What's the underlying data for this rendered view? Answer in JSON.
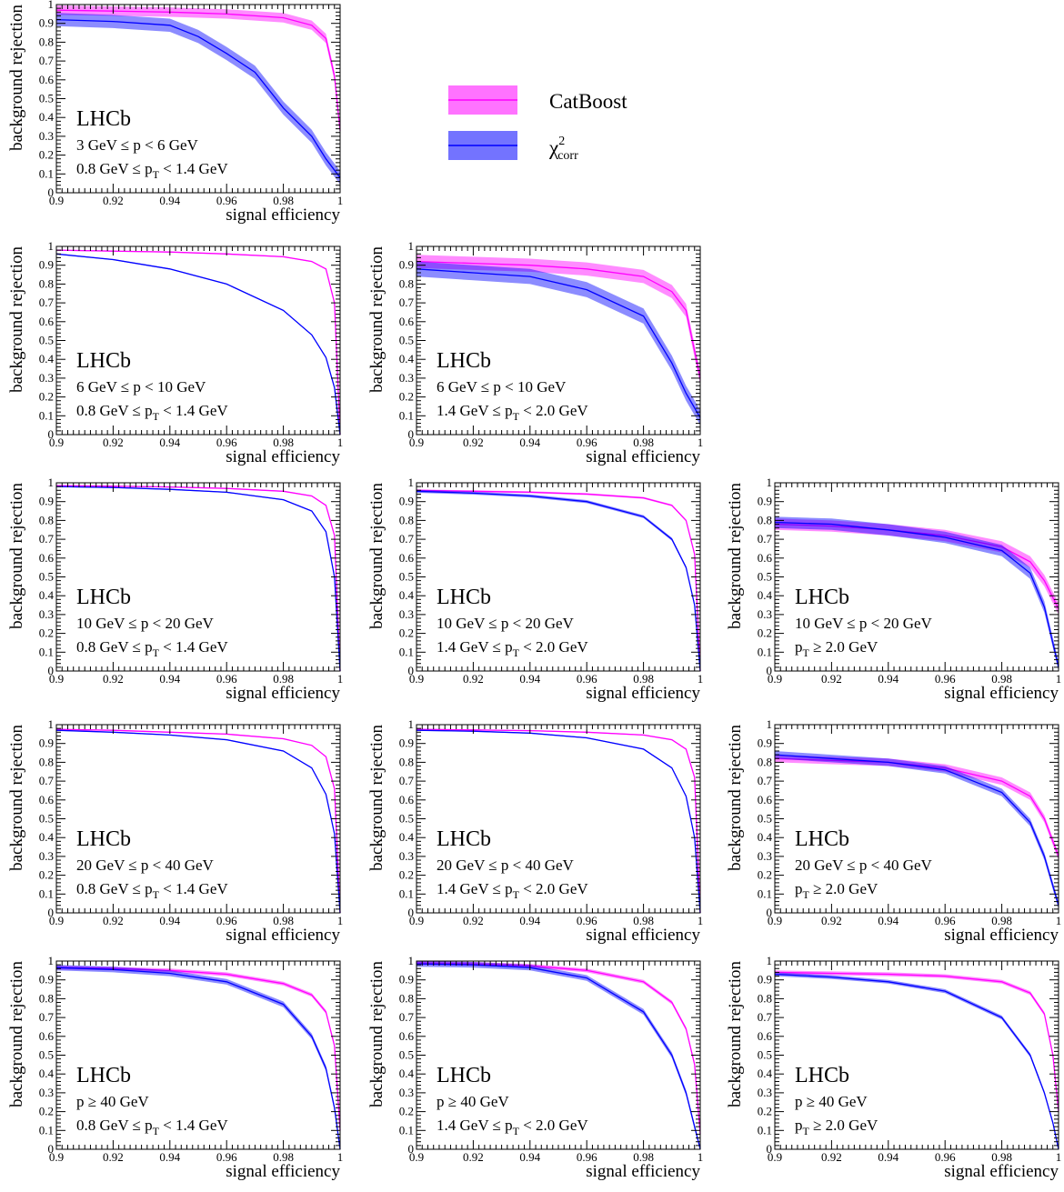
{
  "legend": {
    "items": [
      {
        "label": "CatBoost",
        "color": "#ff00ff"
      },
      {
        "label": "χ",
        "sup": "2",
        "sub": "corr",
        "color": "#0000ff"
      }
    ]
  },
  "chart_data": [
    {
      "type": "line",
      "experiment_label": "LHCb",
      "bin_p": "3 GeV ≤ p < 6 GeV",
      "bin_pt": {
        "pre": "0.8 GeV ≤ p",
        "sub": "T",
        "post": " < 1.4 GeV"
      },
      "xlabel": "signal efficiency",
      "ylabel": "background rejection",
      "xlim": [
        0.9,
        1.0
      ],
      "ylim": [
        0,
        1
      ],
      "xticks": [
        "0.9",
        "0.92",
        "0.94",
        "0.96",
        "0.98",
        "1"
      ],
      "yticks": [
        "0",
        "0.1",
        "0.2",
        "0.3",
        "0.4",
        "0.5",
        "0.6",
        "0.7",
        "0.8",
        "0.9",
        "1"
      ],
      "x": [
        0.9,
        0.92,
        0.94,
        0.95,
        0.96,
        0.97,
        0.98,
        0.99,
        0.995,
        0.998,
        1.0
      ],
      "series": [
        {
          "name": "CatBoost",
          "color": "#ff00ff",
          "values": [
            0.97,
            0.965,
            0.96,
            0.955,
            0.95,
            0.94,
            0.93,
            0.89,
            0.82,
            0.62,
            0.33
          ],
          "band": 0.025
        },
        {
          "name": "χ2corr",
          "color": "#0000ff",
          "values": [
            0.92,
            0.91,
            0.89,
            0.83,
            0.74,
            0.64,
            0.45,
            0.3,
            0.18,
            0.12,
            0.08
          ],
          "band": 0.035
        }
      ]
    },
    {
      "type": "line",
      "experiment_label": "LHCb",
      "bin_p": "6 GeV ≤ p < 10 GeV",
      "bin_pt": {
        "pre": "0.8 GeV ≤ p",
        "sub": "T",
        "post": " < 1.4 GeV"
      },
      "xlabel": "signal efficiency",
      "ylabel": "background rejection",
      "xlim": [
        0.9,
        1.0
      ],
      "ylim": [
        0,
        1
      ],
      "xticks": [
        "0.9",
        "0.92",
        "0.94",
        "0.96",
        "0.98",
        "1"
      ],
      "yticks": [
        "0",
        "0.1",
        "0.2",
        "0.3",
        "0.4",
        "0.5",
        "0.6",
        "0.7",
        "0.8",
        "0.9",
        "1"
      ],
      "x": [
        0.9,
        0.92,
        0.94,
        0.96,
        0.98,
        0.99,
        0.995,
        0.998,
        1.0
      ],
      "series": [
        {
          "name": "CatBoost",
          "color": "#ff00ff",
          "values": [
            0.98,
            0.975,
            0.97,
            0.96,
            0.945,
            0.92,
            0.88,
            0.7,
            0.0
          ],
          "band": 0.003
        },
        {
          "name": "χ2corr",
          "color": "#0000ff",
          "values": [
            0.96,
            0.93,
            0.88,
            0.8,
            0.66,
            0.53,
            0.41,
            0.25,
            0.0
          ],
          "band": 0.003
        }
      ]
    },
    {
      "type": "line",
      "experiment_label": "LHCb",
      "bin_p": "6 GeV ≤ p < 10 GeV",
      "bin_pt": {
        "pre": "1.4 GeV ≤ p",
        "sub": "T",
        "post": " < 2.0 GeV"
      },
      "xlabel": "signal efficiency",
      "ylabel": "background rejection",
      "xlim": [
        0.9,
        1.0
      ],
      "ylim": [
        0,
        1
      ],
      "xticks": [
        "0.9",
        "0.92",
        "0.94",
        "0.96",
        "0.98",
        "1"
      ],
      "yticks": [
        "0",
        "0.1",
        "0.2",
        "0.3",
        "0.4",
        "0.5",
        "0.6",
        "0.7",
        "0.8",
        "0.9",
        "1"
      ],
      "x": [
        0.9,
        0.92,
        0.94,
        0.96,
        0.98,
        0.99,
        0.995,
        1.0
      ],
      "series": [
        {
          "name": "CatBoost",
          "color": "#ff00ff",
          "values": [
            0.92,
            0.91,
            0.9,
            0.88,
            0.84,
            0.76,
            0.66,
            0.3
          ],
          "band": 0.035
        },
        {
          "name": "χ2corr",
          "color": "#0000ff",
          "values": [
            0.88,
            0.86,
            0.84,
            0.77,
            0.63,
            0.38,
            0.22,
            0.09
          ],
          "band": 0.04
        }
      ]
    },
    {
      "type": "line",
      "experiment_label": "LHCb",
      "bin_p": "10 GeV ≤ p < 20 GeV",
      "bin_pt": {
        "pre": "0.8 GeV ≤ p",
        "sub": "T",
        "post": " < 1.4 GeV"
      },
      "xlabel": "signal efficiency",
      "ylabel": "background rejection",
      "xlim": [
        0.9,
        1.0
      ],
      "ylim": [
        0,
        1
      ],
      "xticks": [
        "0.9",
        "0.92",
        "0.94",
        "0.96",
        "0.98",
        "1"
      ],
      "yticks": [
        "0",
        "0.1",
        "0.2",
        "0.3",
        "0.4",
        "0.5",
        "0.6",
        "0.7",
        "0.8",
        "0.9",
        "1"
      ],
      "x": [
        0.9,
        0.92,
        0.94,
        0.96,
        0.98,
        0.99,
        0.995,
        0.998,
        1.0
      ],
      "series": [
        {
          "name": "CatBoost",
          "color": "#ff00ff",
          "values": [
            0.985,
            0.982,
            0.978,
            0.97,
            0.955,
            0.93,
            0.88,
            0.72,
            0.0
          ],
          "band": 0.003
        },
        {
          "name": "χ2corr",
          "color": "#0000ff",
          "values": [
            0.98,
            0.975,
            0.965,
            0.95,
            0.91,
            0.85,
            0.74,
            0.5,
            0.0
          ],
          "band": 0.003
        }
      ]
    },
    {
      "type": "line",
      "experiment_label": "LHCb",
      "bin_p": "10 GeV ≤ p < 20 GeV",
      "bin_pt": {
        "pre": "1.4 GeV ≤ p",
        "sub": "T",
        "post": " < 2.0 GeV"
      },
      "xlabel": "signal efficiency",
      "ylabel": "background rejection",
      "xlim": [
        0.9,
        1.0
      ],
      "ylim": [
        0,
        1
      ],
      "xticks": [
        "0.9",
        "0.92",
        "0.94",
        "0.96",
        "0.98",
        "1"
      ],
      "yticks": [
        "0",
        "0.1",
        "0.2",
        "0.3",
        "0.4",
        "0.5",
        "0.6",
        "0.7",
        "0.8",
        "0.9",
        "1"
      ],
      "x": [
        0.9,
        0.92,
        0.94,
        0.96,
        0.98,
        0.99,
        0.995,
        0.998,
        1.0
      ],
      "series": [
        {
          "name": "CatBoost",
          "color": "#ff00ff",
          "values": [
            0.96,
            0.955,
            0.95,
            0.94,
            0.92,
            0.88,
            0.8,
            0.62,
            0.0
          ],
          "band": 0.005
        },
        {
          "name": "χ2corr",
          "color": "#0000ff",
          "values": [
            0.955,
            0.945,
            0.93,
            0.9,
            0.82,
            0.7,
            0.55,
            0.35,
            0.0
          ],
          "band": 0.008
        }
      ]
    },
    {
      "type": "line",
      "experiment_label": "LHCb",
      "bin_p": "10 GeV ≤ p < 20 GeV",
      "bin_pt": {
        "pre": "p",
        "sub": "T",
        "post": " ≥ 2.0 GeV"
      },
      "xlabel": "signal efficiency",
      "ylabel": "background rejection",
      "xlim": [
        0.9,
        1.0
      ],
      "ylim": [
        0,
        1
      ],
      "xticks": [
        "0.9",
        "0.92",
        "0.94",
        "0.96",
        "0.98",
        "1"
      ],
      "yticks": [
        "0",
        "0.1",
        "0.2",
        "0.3",
        "0.4",
        "0.5",
        "0.6",
        "0.7",
        "0.8",
        "0.9",
        "1"
      ],
      "x": [
        0.9,
        0.92,
        0.94,
        0.96,
        0.98,
        0.99,
        0.995,
        1.0
      ],
      "series": [
        {
          "name": "CatBoost",
          "color": "#ff00ff",
          "values": [
            0.78,
            0.77,
            0.75,
            0.72,
            0.66,
            0.58,
            0.48,
            0.33
          ],
          "band": 0.03
        },
        {
          "name": "χ2corr",
          "color": "#0000ff",
          "values": [
            0.79,
            0.78,
            0.75,
            0.71,
            0.64,
            0.52,
            0.34,
            0.02
          ],
          "band": 0.03
        }
      ]
    },
    {
      "type": "line",
      "experiment_label": "LHCb",
      "bin_p": "20 GeV ≤ p < 40 GeV",
      "bin_pt": {
        "pre": "0.8 GeV ≤ p",
        "sub": "T",
        "post": " < 1.4 GeV"
      },
      "xlabel": "signal efficiency",
      "ylabel": "background rejection",
      "xlim": [
        0.9,
        1.0
      ],
      "ylim": [
        0,
        1
      ],
      "xticks": [
        "0.9",
        "0.92",
        "0.94",
        "0.96",
        "0.98",
        "1"
      ],
      "yticks": [
        "0",
        "0.1",
        "0.2",
        "0.3",
        "0.4",
        "0.5",
        "0.6",
        "0.7",
        "0.8",
        "0.9",
        "1"
      ],
      "x": [
        0.9,
        0.92,
        0.94,
        0.96,
        0.98,
        0.99,
        0.995,
        0.998,
        1.0
      ],
      "series": [
        {
          "name": "CatBoost",
          "color": "#ff00ff",
          "values": [
            0.975,
            0.97,
            0.96,
            0.95,
            0.925,
            0.89,
            0.83,
            0.66,
            0.0
          ],
          "band": 0.003
        },
        {
          "name": "χ2corr",
          "color": "#0000ff",
          "values": [
            0.97,
            0.96,
            0.945,
            0.92,
            0.86,
            0.77,
            0.63,
            0.42,
            0.0
          ],
          "band": 0.003
        }
      ]
    },
    {
      "type": "line",
      "experiment_label": "LHCb",
      "bin_p": "20 GeV ≤ p < 40 GeV",
      "bin_pt": {
        "pre": "1.4 GeV ≤ p",
        "sub": "T",
        "post": " < 2.0 GeV"
      },
      "xlabel": "signal efficiency",
      "ylabel": "background rejection",
      "xlim": [
        0.9,
        1.0
      ],
      "ylim": [
        0,
        1
      ],
      "xticks": [
        "0.9",
        "0.92",
        "0.94",
        "0.96",
        "0.98",
        "1"
      ],
      "yticks": [
        "0",
        "0.1",
        "0.2",
        "0.3",
        "0.4",
        "0.5",
        "0.6",
        "0.7",
        "0.8",
        "0.9",
        "1"
      ],
      "x": [
        0.9,
        0.92,
        0.94,
        0.96,
        0.98,
        0.99,
        0.995,
        0.998,
        1.0
      ],
      "series": [
        {
          "name": "CatBoost",
          "color": "#ff00ff",
          "values": [
            0.975,
            0.972,
            0.968,
            0.96,
            0.945,
            0.92,
            0.87,
            0.72,
            0.0
          ],
          "band": 0.003
        },
        {
          "name": "χ2corr",
          "color": "#0000ff",
          "values": [
            0.97,
            0.965,
            0.955,
            0.93,
            0.87,
            0.77,
            0.62,
            0.4,
            0.0
          ],
          "band": 0.003
        }
      ]
    },
    {
      "type": "line",
      "experiment_label": "LHCb",
      "bin_p": "20 GeV ≤ p < 40 GeV",
      "bin_pt": {
        "pre": "p",
        "sub": "T",
        "post": " ≥ 2.0 GeV"
      },
      "xlabel": "signal efficiency",
      "ylabel": "background rejection",
      "xlim": [
        0.9,
        1.0
      ],
      "ylim": [
        0,
        1
      ],
      "xticks": [
        "0.9",
        "0.92",
        "0.94",
        "0.96",
        "0.98",
        "1"
      ],
      "yticks": [
        "0",
        "0.1",
        "0.2",
        "0.3",
        "0.4",
        "0.5",
        "0.6",
        "0.7",
        "0.8",
        "0.9",
        "1"
      ],
      "x": [
        0.9,
        0.92,
        0.94,
        0.96,
        0.98,
        0.99,
        0.995,
        1.0
      ],
      "series": [
        {
          "name": "CatBoost",
          "color": "#ff00ff",
          "values": [
            0.82,
            0.81,
            0.8,
            0.77,
            0.7,
            0.62,
            0.5,
            0.3
          ],
          "band": 0.02
        },
        {
          "name": "χ2corr",
          "color": "#0000ff",
          "values": [
            0.84,
            0.82,
            0.8,
            0.76,
            0.64,
            0.48,
            0.3,
            0.04
          ],
          "band": 0.02
        }
      ]
    },
    {
      "type": "line",
      "experiment_label": "LHCb",
      "bin_p": "p ≥ 40 GeV",
      "bin_pt": {
        "pre": "0.8 GeV ≤ p",
        "sub": "T",
        "post": " < 1.4 GeV"
      },
      "xlabel": "signal efficiency",
      "ylabel": "background rejection",
      "xlim": [
        0.9,
        1.0
      ],
      "ylim": [
        0,
        1
      ],
      "xticks": [
        "0.9",
        "0.92",
        "0.94",
        "0.96",
        "0.98",
        "1"
      ],
      "yticks": [
        "0",
        "0.1",
        "0.2",
        "0.3",
        "0.4",
        "0.5",
        "0.6",
        "0.7",
        "0.8",
        "0.9",
        "1"
      ],
      "x": [
        0.9,
        0.92,
        0.94,
        0.96,
        0.98,
        0.99,
        0.995,
        0.998,
        1.0
      ],
      "series": [
        {
          "name": "CatBoost",
          "color": "#ff00ff",
          "values": [
            0.965,
            0.96,
            0.95,
            0.93,
            0.88,
            0.82,
            0.73,
            0.55,
            0.1
          ],
          "band": 0.01
        },
        {
          "name": "χ2corr",
          "color": "#0000ff",
          "values": [
            0.965,
            0.955,
            0.935,
            0.89,
            0.77,
            0.6,
            0.43,
            0.22,
            0.0
          ],
          "band": 0.015
        }
      ]
    },
    {
      "type": "line",
      "experiment_label": "LHCb",
      "bin_p": "p ≥ 40 GeV",
      "bin_pt": {
        "pre": "1.4 GeV ≤ p",
        "sub": "T",
        "post": " < 2.0 GeV"
      },
      "xlabel": "signal efficiency",
      "ylabel": "background rejection",
      "xlim": [
        0.9,
        1.0
      ],
      "ylim": [
        0,
        1
      ],
      "xticks": [
        "0.9",
        "0.92",
        "0.94",
        "0.96",
        "0.98",
        "1"
      ],
      "yticks": [
        "0",
        "0.1",
        "0.2",
        "0.3",
        "0.4",
        "0.5",
        "0.6",
        "0.7",
        "0.8",
        "0.9",
        "1"
      ],
      "x": [
        0.9,
        0.92,
        0.94,
        0.96,
        0.98,
        0.99,
        0.995,
        0.998,
        1.0
      ],
      "series": [
        {
          "name": "CatBoost",
          "color": "#ff00ff",
          "values": [
            0.99,
            0.985,
            0.975,
            0.95,
            0.89,
            0.78,
            0.64,
            0.45,
            0.08
          ],
          "band": 0.01
        },
        {
          "name": "χ2corr",
          "color": "#0000ff",
          "values": [
            0.985,
            0.98,
            0.965,
            0.91,
            0.73,
            0.5,
            0.3,
            0.12,
            0.0
          ],
          "band": 0.015
        }
      ]
    },
    {
      "type": "line",
      "experiment_label": "LHCb",
      "bin_p": "p ≥ 40 GeV",
      "bin_pt": {
        "pre": "p",
        "sub": "T",
        "post": " ≥ 2.0 GeV"
      },
      "xlabel": "signal efficiency",
      "ylabel": "background rejection",
      "xlim": [
        0.9,
        1.0
      ],
      "ylim": [
        0,
        1
      ],
      "xticks": [
        "0.9",
        "0.92",
        "0.94",
        "0.96",
        "0.98",
        "1"
      ],
      "yticks": [
        "0",
        "0.1",
        "0.2",
        "0.3",
        "0.4",
        "0.5",
        "0.6",
        "0.7",
        "0.8",
        "0.9",
        "1"
      ],
      "x": [
        0.9,
        0.92,
        0.94,
        0.96,
        0.98,
        0.99,
        0.995,
        0.998,
        1.0
      ],
      "series": [
        {
          "name": "CatBoost",
          "color": "#ff00ff",
          "values": [
            0.94,
            0.935,
            0.93,
            0.92,
            0.89,
            0.83,
            0.72,
            0.5,
            0.2
          ],
          "band": 0.01
        },
        {
          "name": "χ2corr",
          "color": "#0000ff",
          "values": [
            0.93,
            0.915,
            0.89,
            0.84,
            0.7,
            0.5,
            0.3,
            0.14,
            0.0
          ],
          "band": 0.01
        }
      ]
    }
  ]
}
